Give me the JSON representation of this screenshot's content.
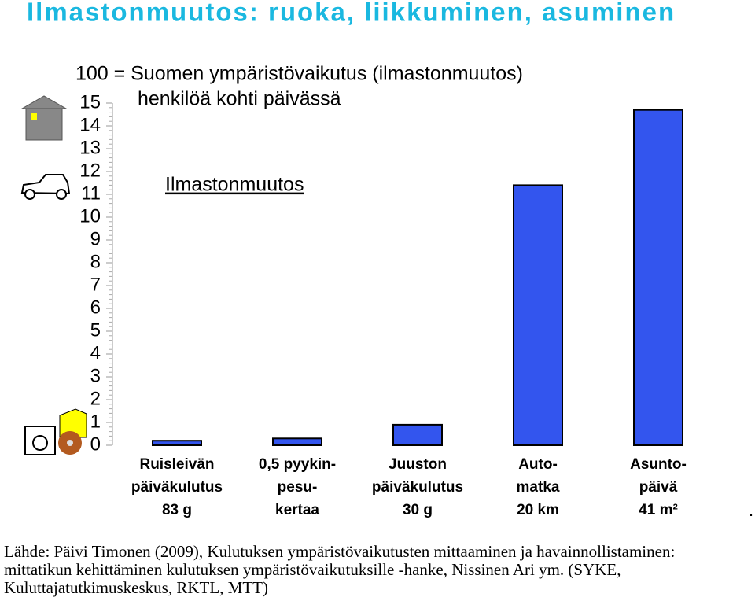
{
  "chart_data": {
    "type": "bar",
    "title": "Ilmastonmuutos: ruoka, liikkuminen, asuminen",
    "subtitle": [
      "100 = Suomen ympäristövaikutus (ilmastonmuutos)",
      "henkilöä kohti päivässä"
    ],
    "categories": [
      [
        "Ruisleivän",
        "päiväkulutus",
        "83 g"
      ],
      [
        "0,5 pyykin-",
        "pesu-",
        "kertaa"
      ],
      [
        "Juuston",
        "päiväkulutus",
        "30 g"
      ],
      [
        "Auto-",
        "matka",
        "20 km"
      ],
      [
        "Asunto-",
        "päivä",
        "41 m²"
      ]
    ],
    "series": [
      {
        "name": "Ilmastonmuutos",
        "color": "#3355ee",
        "values": [
          0.2,
          0.3,
          0.9,
          11.4,
          14.7
        ]
      }
    ],
    "ylim": [
      0,
      15
    ],
    "yticks": [
      0,
      1,
      2,
      3,
      4,
      5,
      6,
      7,
      8,
      9,
      10,
      11,
      12,
      13,
      14,
      15
    ],
    "note": ".",
    "source": [
      "Lähde: Päivi Timonen (2009), Kulutuksen ympäristövaikutusten mittaaminen ja havainnollistaminen:",
      "mittatikun kehittäminen kulutuksen ympäristövaikutuksille -hanke, Nissinen Ari ym. (SYKE,",
      "Kuluttajatutkimuskeskus, RKTL, MTT)"
    ]
  }
}
